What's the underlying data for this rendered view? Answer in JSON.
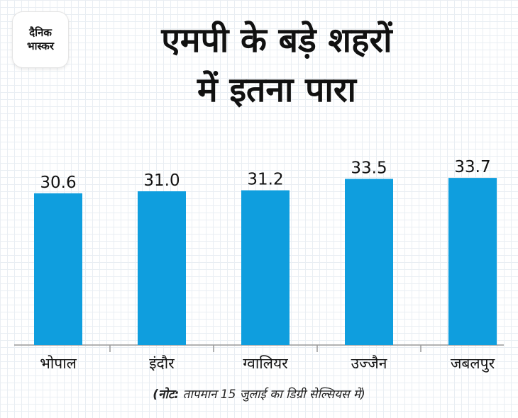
{
  "brand": {
    "line1": "दैनिक",
    "line2": "भास्कर"
  },
  "title_line1": "एमपी के बड़े शहरों",
  "title_line2": "में इतना पारा",
  "note": {
    "prefix": "(नोट:",
    "text": " तापमान 15 जुलाई का डिग्री सेल्सियस में)"
  },
  "colors": {
    "bar": "#0f9ede",
    "axis": "#999999",
    "text": "#111111"
  },
  "chart_data": {
    "type": "bar",
    "title": "एमपी के बड़े शहरों में इतना पारा",
    "categories": [
      "भोपाल",
      "इंदौर",
      "ग्वालियर",
      "उज्जैन",
      "जबलपुर"
    ],
    "values": [
      30.6,
      31.0,
      31.2,
      33.5,
      33.7
    ],
    "value_labels": [
      "30.6",
      "31.0",
      "31.2",
      "33.5",
      "33.7"
    ],
    "xlabel": "",
    "ylabel": "",
    "ylim": [
      0,
      40
    ],
    "grid": false,
    "legend": "none"
  }
}
